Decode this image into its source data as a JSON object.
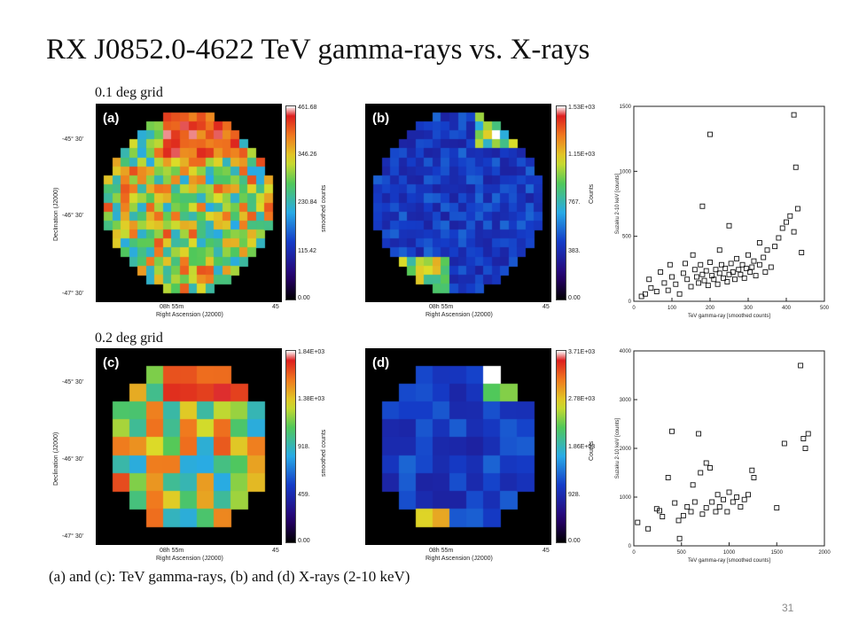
{
  "title": "RX J0852.0-4622  TeV gamma-rays vs. X-rays",
  "grid_labels": {
    "top": "0.1 deg grid",
    "bottom": "0.2 deg grid"
  },
  "caption": "(a) and (c): TeV gamma-rays,   (b) and (d) X-rays (2-10 keV)",
  "page_number": "31",
  "axes": {
    "dec_label": "Declination (J2000)",
    "ra_label": "Right Ascension (J2000)",
    "dec_ticks": [
      "-45° 30'",
      "-46° 30'",
      "-47° 30'"
    ],
    "ra_ticks": [
      "08h 55m",
      "45"
    ]
  },
  "panels": {
    "a": {
      "letter": "(a)",
      "cbar_label": "smoothed counts",
      "ticks": [
        "461.68",
        "346.26",
        "230.84",
        "115.42",
        "0.00"
      ]
    },
    "b": {
      "letter": "(b)",
      "cbar_label": "Counts",
      "ticks": [
        "1.53E+03",
        "1.15E+03",
        "767.",
        "383.",
        "0.00"
      ]
    },
    "c": {
      "letter": "(c)",
      "cbar_label": "smoothed counts",
      "ticks": [
        "1.84E+03",
        "1.38E+03",
        "918.",
        "459.",
        "0.00"
      ]
    },
    "d": {
      "letter": "(d)",
      "cbar_label": "Counts",
      "ticks": [
        "3.71E+03",
        "2.78E+03",
        "1.86E+03",
        "928.",
        "0.00"
      ]
    }
  },
  "chart_data": [
    {
      "type": "scatter",
      "xlabel": "TeV gamma-ray [smoothed counts]",
      "ylabel": "Suzaku 2-10 keV [counts]",
      "xlim": [
        0,
        500
      ],
      "ylim": [
        0,
        1600
      ],
      "xticks": [
        "0",
        "100",
        "200",
        "300",
        "400",
        "500"
      ],
      "yticks": [
        "0",
        "500",
        "1000",
        "1500"
      ],
      "points": [
        [
          30,
          60
        ],
        [
          45,
          110
        ],
        [
          60,
          80
        ],
        [
          80,
          150
        ],
        [
          90,
          90
        ],
        [
          100,
          200
        ],
        [
          110,
          140
        ],
        [
          120,
          60
        ],
        [
          130,
          230
        ],
        [
          140,
          180
        ],
        [
          150,
          120
        ],
        [
          160,
          260
        ],
        [
          165,
          200
        ],
        [
          170,
          150
        ],
        [
          175,
          300
        ],
        [
          180,
          220
        ],
        [
          185,
          170
        ],
        [
          190,
          250
        ],
        [
          195,
          130
        ],
        [
          200,
          320
        ],
        [
          205,
          210
        ],
        [
          210,
          180
        ],
        [
          215,
          260
        ],
        [
          220,
          140
        ],
        [
          225,
          230
        ],
        [
          230,
          300
        ],
        [
          235,
          190
        ],
        [
          240,
          270
        ],
        [
          245,
          160
        ],
        [
          250,
          220
        ],
        [
          255,
          310
        ],
        [
          260,
          240
        ],
        [
          265,
          180
        ],
        [
          270,
          350
        ],
        [
          275,
          260
        ],
        [
          280,
          220
        ],
        [
          285,
          300
        ],
        [
          290,
          190
        ],
        [
          295,
          270
        ],
        [
          300,
          380
        ],
        [
          305,
          240
        ],
        [
          310,
          280
        ],
        [
          315,
          330
        ],
        [
          320,
          210
        ],
        [
          330,
          300
        ],
        [
          340,
          360
        ],
        [
          350,
          420
        ],
        [
          360,
          280
        ],
        [
          370,
          450
        ],
        [
          380,
          520
        ],
        [
          390,
          600
        ],
        [
          400,
          650
        ],
        [
          410,
          700
        ],
        [
          420,
          570
        ],
        [
          430,
          760
        ],
        [
          440,
          400
        ],
        [
          200,
          1370
        ],
        [
          420,
          1530
        ],
        [
          425,
          1100
        ],
        [
          180,
          780
        ],
        [
          250,
          620
        ],
        [
          330,
          480
        ],
        [
          135,
          310
        ],
        [
          155,
          380
        ],
        [
          70,
          240
        ],
        [
          40,
          180
        ],
        [
          20,
          40
        ],
        [
          95,
          300
        ],
        [
          225,
          420
        ],
        [
          345,
          240
        ]
      ]
    },
    {
      "type": "scatter",
      "xlabel": "TeV gamma-ray [smoothed counts]",
      "ylabel": "Suzaku 2-10 keV [counts]",
      "xlim": [
        0,
        2000
      ],
      "ylim": [
        0,
        4000
      ],
      "xticks": [
        "0",
        "500",
        "1000",
        "1500",
        "2000"
      ],
      "yticks": [
        "0",
        "1000",
        "2000",
        "3000",
        "4000"
      ],
      "points": [
        [
          40,
          480
        ],
        [
          150,
          350
        ],
        [
          240,
          760
        ],
        [
          270,
          720
        ],
        [
          300,
          600
        ],
        [
          360,
          1400
        ],
        [
          400,
          2350
        ],
        [
          430,
          880
        ],
        [
          470,
          520
        ],
        [
          520,
          620
        ],
        [
          560,
          800
        ],
        [
          600,
          700
        ],
        [
          640,
          900
        ],
        [
          680,
          2300
        ],
        [
          700,
          1500
        ],
        [
          720,
          650
        ],
        [
          760,
          780
        ],
        [
          800,
          1600
        ],
        [
          820,
          900
        ],
        [
          860,
          700
        ],
        [
          880,
          1050
        ],
        [
          900,
          800
        ],
        [
          940,
          950
        ],
        [
          980,
          700
        ],
        [
          1000,
          1100
        ],
        [
          1040,
          900
        ],
        [
          1080,
          1000
        ],
        [
          1120,
          800
        ],
        [
          1160,
          950
        ],
        [
          1200,
          1050
        ],
        [
          1240,
          1550
        ],
        [
          1260,
          1400
        ],
        [
          1500,
          780
        ],
        [
          1580,
          2100
        ],
        [
          1750,
          3700
        ],
        [
          1780,
          2200
        ],
        [
          1800,
          2000
        ],
        [
          1830,
          2300
        ],
        [
          480,
          150
        ],
        [
          620,
          1250
        ],
        [
          760,
          1700
        ]
      ]
    }
  ]
}
